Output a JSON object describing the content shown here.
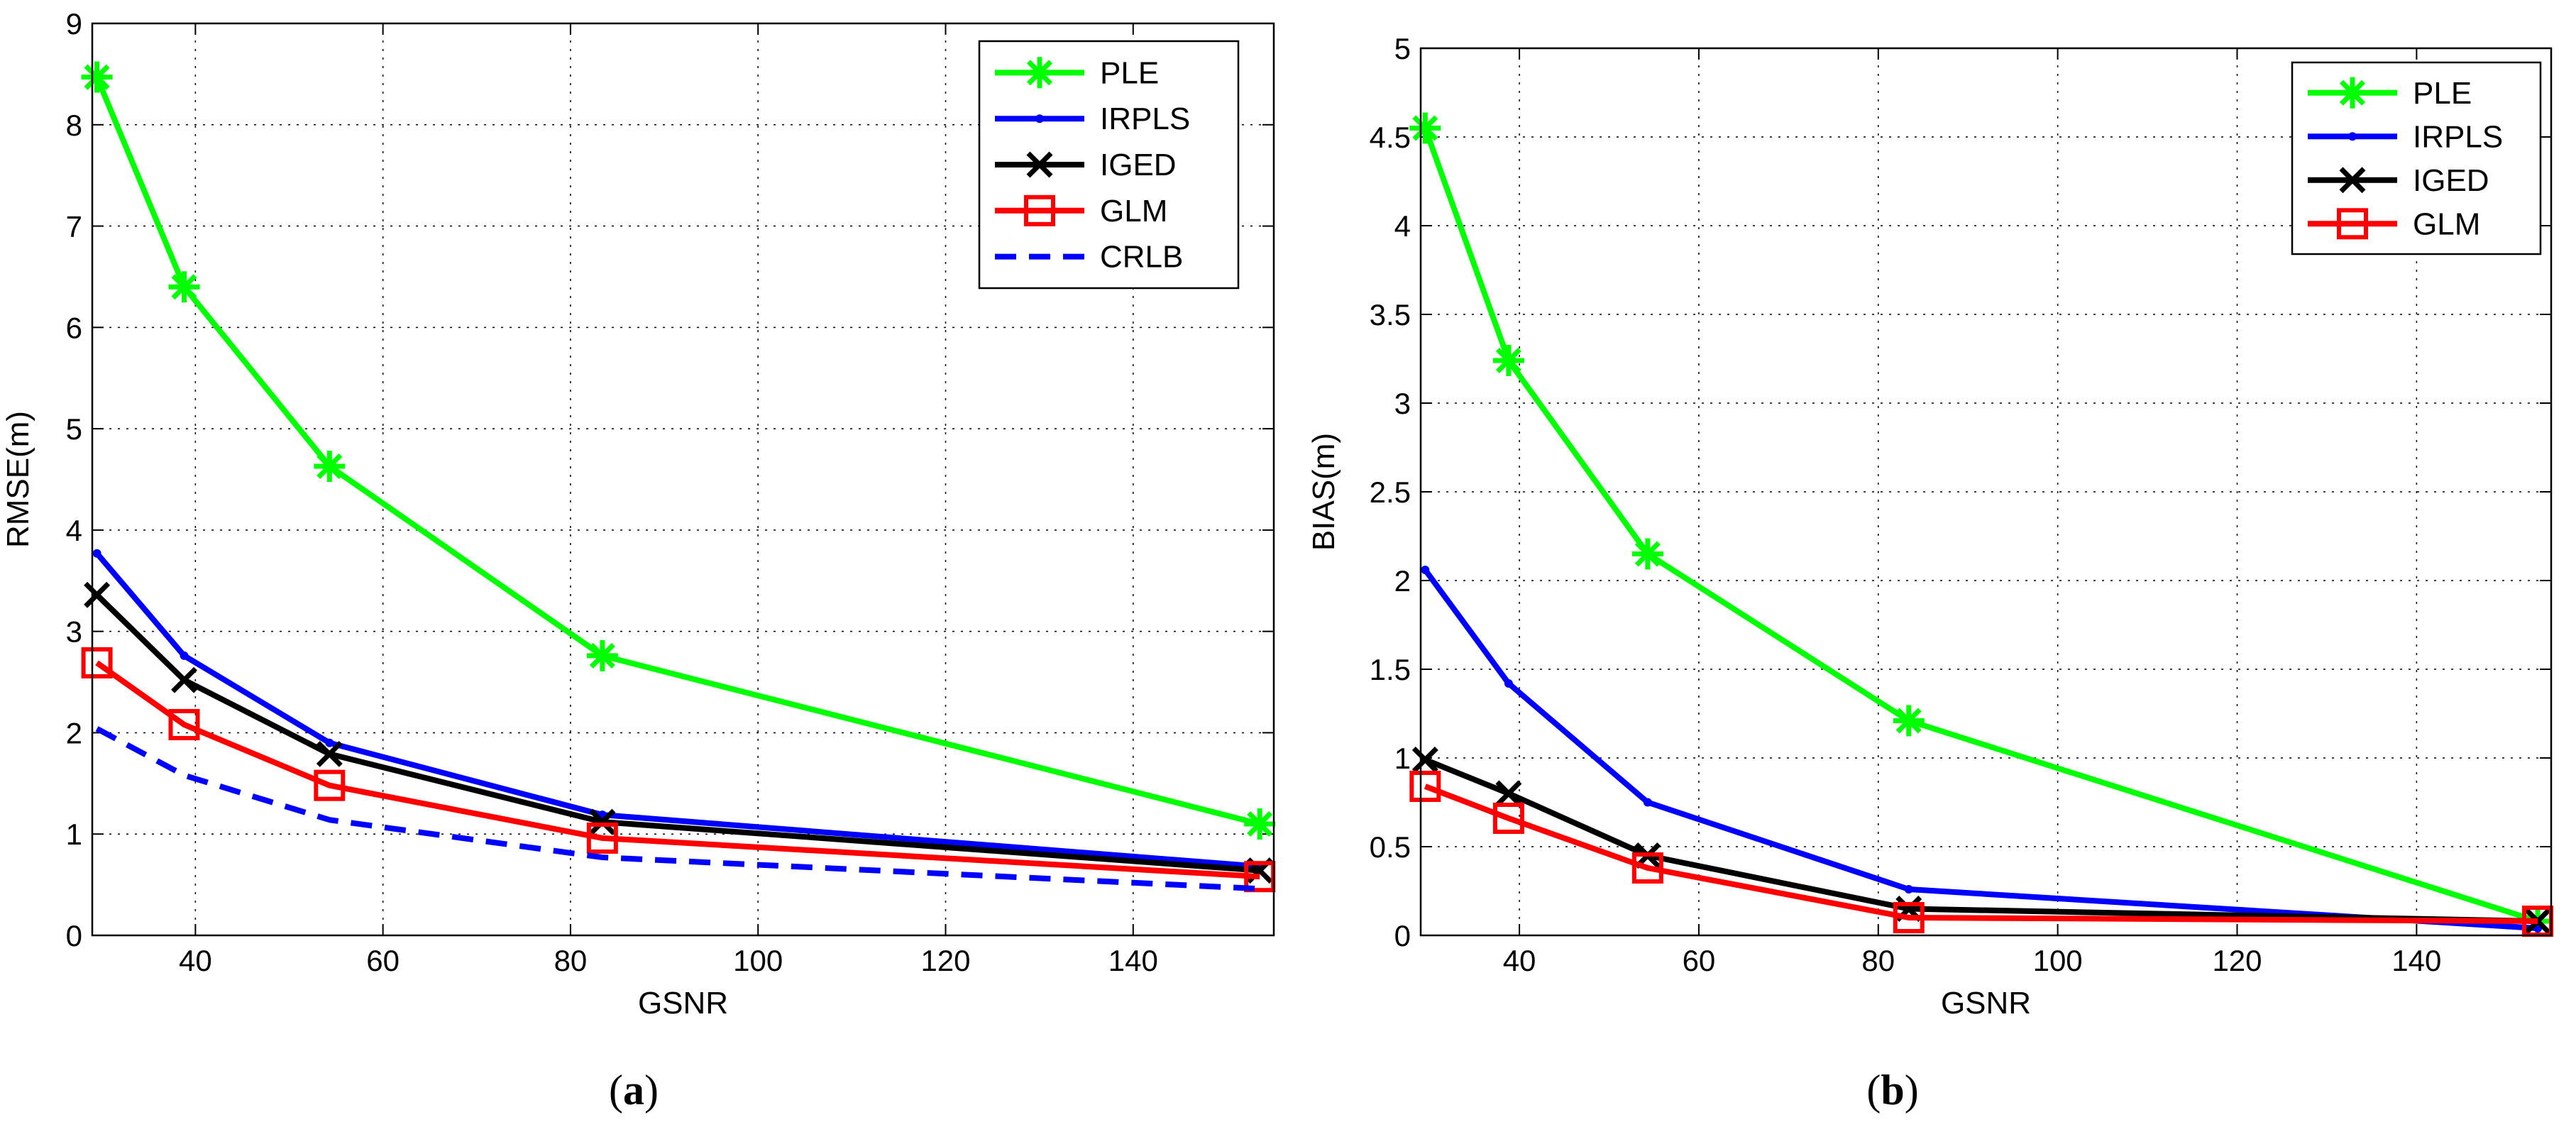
{
  "chart_data": [
    {
      "type": "line",
      "caption_label": "a",
      "xlabel": "GSNR",
      "ylabel": "RMSE(m)",
      "xlim": [
        29,
        155
      ],
      "ylim": [
        0,
        9
      ],
      "xticks": [
        40,
        60,
        80,
        100,
        120,
        140
      ],
      "yticks": [
        0,
        1,
        2,
        3,
        4,
        5,
        6,
        7,
        8,
        9
      ],
      "grid": true,
      "legend_position": "top-right",
      "x": [
        29.5,
        38.8,
        54.3,
        83.4,
        153.5
      ],
      "series": [
        {
          "name": "PLE",
          "color": "#00ff00",
          "marker": "asterisk",
          "dash": "solid",
          "values": [
            8.47,
            6.4,
            4.63,
            2.76,
            1.1
          ]
        },
        {
          "name": "IRPLS",
          "color": "#0000ff",
          "marker": "dot",
          "dash": "solid",
          "values": [
            3.77,
            2.76,
            1.9,
            1.19,
            0.68
          ]
        },
        {
          "name": "IGED",
          "color": "#000000",
          "marker": "x",
          "dash": "solid",
          "values": [
            3.36,
            2.52,
            1.79,
            1.12,
            0.64
          ]
        },
        {
          "name": "GLM",
          "color": "#ff0000",
          "marker": "square",
          "dash": "solid",
          "values": [
            2.69,
            2.08,
            1.48,
            0.96,
            0.58
          ]
        },
        {
          "name": "CRLB",
          "color": "#0000ff",
          "marker": "none",
          "dash": "dashed",
          "values": [
            2.04,
            1.58,
            1.14,
            0.77,
            0.46
          ]
        }
      ]
    },
    {
      "type": "line",
      "caption_label": "b",
      "xlabel": "GSNR",
      "ylabel": "BIAS(m)",
      "xlim": [
        29,
        155
      ],
      "ylim": [
        0,
        5
      ],
      "xticks": [
        40,
        60,
        80,
        100,
        120,
        140
      ],
      "yticks": [
        0,
        0.5,
        1,
        1.5,
        2,
        2.5,
        3,
        3.5,
        4,
        4.5,
        5
      ],
      "grid": true,
      "legend_position": "top-right",
      "x": [
        29.5,
        38.8,
        54.3,
        83.4,
        153.5
      ],
      "series": [
        {
          "name": "PLE",
          "color": "#00ff00",
          "marker": "asterisk",
          "dash": "solid",
          "values": [
            4.55,
            3.24,
            2.15,
            1.21,
            0.08
          ]
        },
        {
          "name": "IRPLS",
          "color": "#0000ff",
          "marker": "dot",
          "dash": "solid",
          "values": [
            2.06,
            1.42,
            0.75,
            0.26,
            0.04
          ]
        },
        {
          "name": "IGED",
          "color": "#000000",
          "marker": "x",
          "dash": "solid",
          "values": [
            0.99,
            0.8,
            0.45,
            0.15,
            0.08
          ]
        },
        {
          "name": "GLM",
          "color": "#ff0000",
          "marker": "square",
          "dash": "solid",
          "values": [
            0.84,
            0.66,
            0.38,
            0.1,
            0.08
          ]
        }
      ]
    }
  ]
}
